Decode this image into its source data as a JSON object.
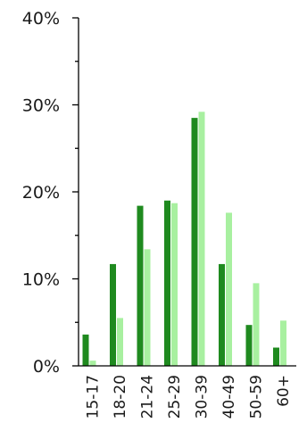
{
  "chart_data": {
    "type": "bar",
    "categories": [
      "15-17",
      "18-20",
      "21-24",
      "25-29",
      "30-39",
      "40-49",
      "50-59",
      "60+"
    ],
    "series": [
      {
        "values": [
          3.6,
          11.7,
          18.4,
          19.0,
          28.5,
          11.7,
          4.7,
          2.1
        ],
        "color": "#1f8a1f"
      },
      {
        "values": [
          0.6,
          5.5,
          13.4,
          18.7,
          29.2,
          17.6,
          9.5,
          5.2
        ],
        "color": "#a8f0a0"
      }
    ],
    "y_ticks": [
      "0%",
      "10%",
      "20%",
      "30%",
      "40%"
    ],
    "ylim": [
      0,
      40
    ],
    "y_minor_step": 5,
    "grid": false,
    "title": "",
    "xlabel": "",
    "ylabel": ""
  }
}
